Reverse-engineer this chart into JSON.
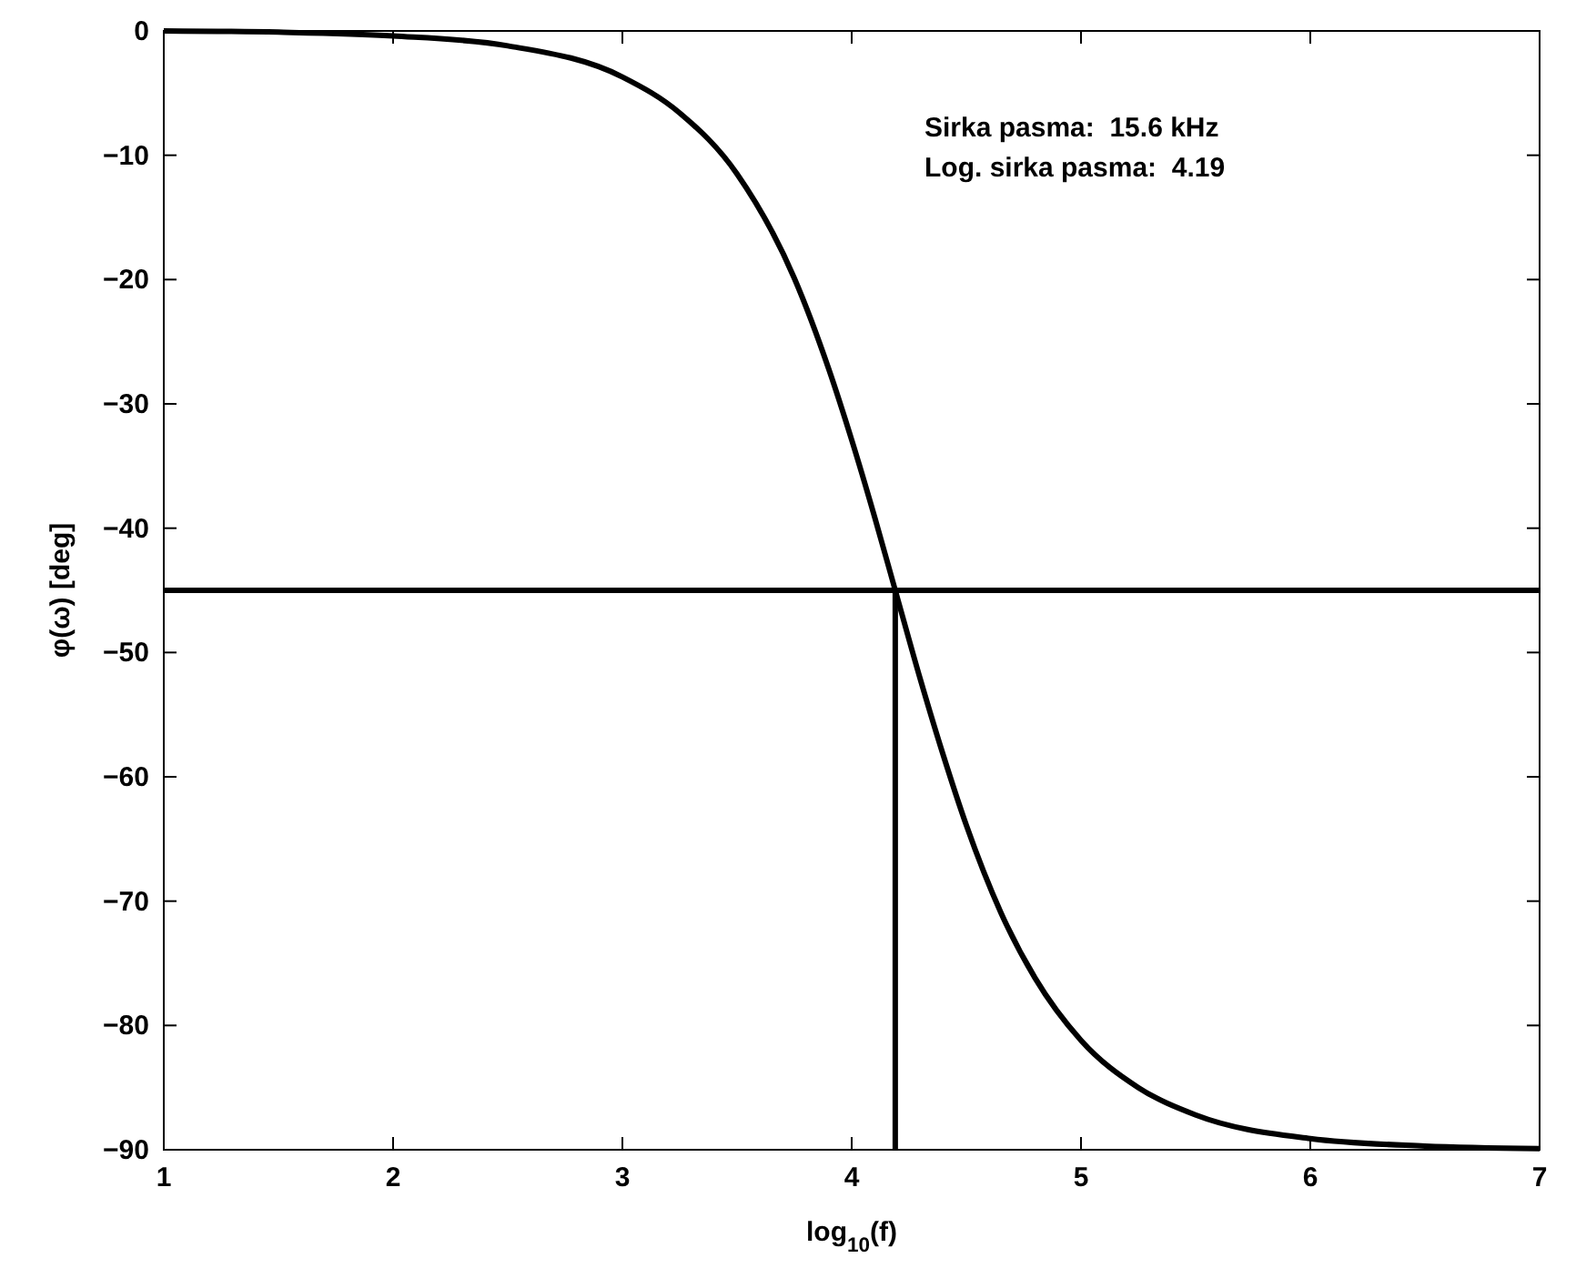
{
  "chart_data": {
    "type": "line",
    "xlabel": "log$_{10}$(f)",
    "ylabel": "φ(ω) [deg]",
    "x": [
      1,
      1.5,
      2,
      2.5,
      3,
      3.25,
      3.5,
      3.75,
      3.9,
      4,
      4.1,
      4.19,
      4.3,
      4.4,
      4.5,
      4.65,
      4.8,
      5,
      5.25,
      5.5,
      6,
      6.5,
      7
    ],
    "series": [
      {
        "color": "#000000",
        "values": [
          0,
          -0.1,
          -0.4,
          -1.2,
          -3.7,
          -6.6,
          -11.5,
          -19.9,
          -27.2,
          -32.9,
          -39.1,
          -45,
          -52.2,
          -58.3,
          -63.9,
          -70.9,
          -76.2,
          -81.2,
          -85,
          -87.2,
          -89.1,
          -89.7,
          -89.9
        ]
      }
    ],
    "xlim": [
      1,
      7
    ],
    "xticks": [
      1,
      2,
      3,
      4,
      5,
      6,
      7
    ],
    "ylim": [
      -90,
      0
    ],
    "yticks": [
      -90,
      -80,
      -70,
      -60,
      -50,
      -40,
      -30,
      -20,
      -10,
      0
    ],
    "ref_lines": [
      {
        "axis": "y",
        "value": -45,
        "color": "#000000"
      },
      {
        "axis": "x",
        "value": 4.19,
        "color": "#000000"
      }
    ],
    "annotations": [
      "Sirka pasma:  15.6 kHz",
      "Log. sirka pasma:  4.19"
    ],
    "grid": false,
    "marker": "none",
    "line_style": "solid"
  }
}
